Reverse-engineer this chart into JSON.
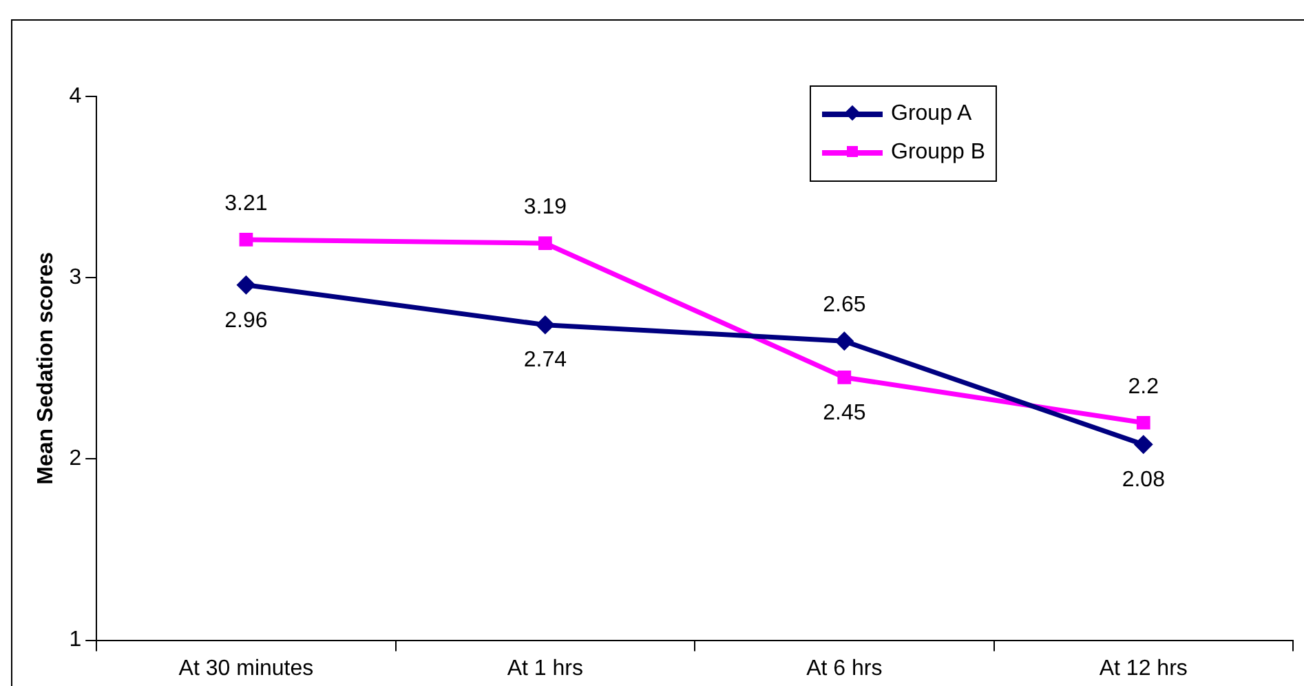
{
  "chart_data": {
    "type": "line",
    "ylabel": "Mean Sedation scores",
    "categories": [
      "At 30 minutes",
      "At 1 hrs",
      "At 6 hrs",
      "At 12 hrs"
    ],
    "series": [
      {
        "name": "Group A",
        "color": "#000080",
        "marker": "diamond",
        "values": [
          2.96,
          2.74,
          2.65,
          2.08
        ]
      },
      {
        "name": "Groupp B",
        "color": "#ff00ff",
        "marker": "square",
        "values": [
          3.21,
          3.19,
          2.45,
          2.2
        ]
      }
    ],
    "ylim": [
      1,
      4
    ],
    "yticks": [
      1,
      2,
      3,
      4
    ],
    "grid": false,
    "legend": "top right",
    "data_labels": true
  }
}
